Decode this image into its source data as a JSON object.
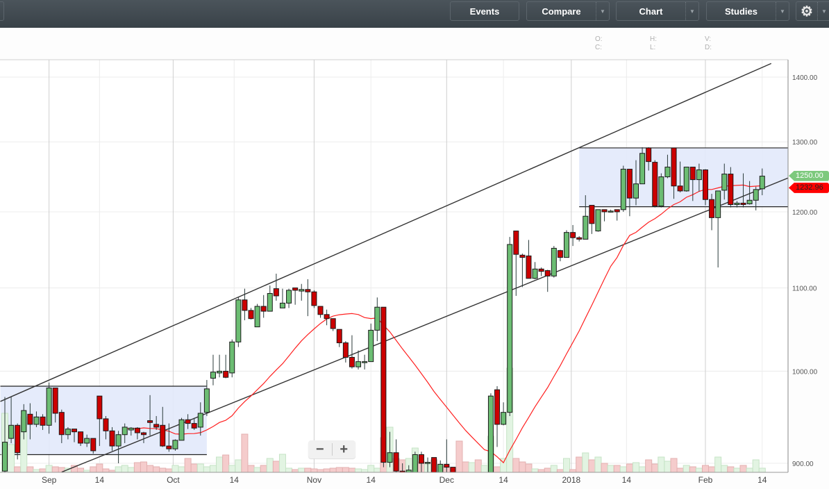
{
  "toolbar": {
    "events_label": "Events",
    "compare_label": "Compare",
    "chart_label": "Chart",
    "studies_label": "Studies",
    "settings_icon": "gear-icon",
    "dropdown_icon": "caret-down-icon"
  },
  "ohlc_readout": {
    "o": "O:",
    "c": "C:",
    "h": "H:",
    "l": "L:",
    "v": "V:",
    "d": "D:"
  },
  "zoom": {
    "minus": "−",
    "plus": "+"
  },
  "price_tags": {
    "last_price": "1250.00",
    "last_price_color": "#7dc97d",
    "ma_value": "1232.96",
    "ma_color": "#ff0000"
  },
  "chart_data": {
    "type": "candlestick",
    "y_scale": "log",
    "ylim": [
      890,
      1425
    ],
    "grid": true,
    "colors": {
      "up": "#6cbd73",
      "down": "#cc0000",
      "ma": "#ff2020",
      "volume_up": "#e2f4e2",
      "volume_down": "#f5cccc",
      "box": "#e2e9fb"
    },
    "y_ticks": [
      "1400.00",
      "1300.00",
      "1200.00",
      "1100.00",
      "1000.00",
      "900.00"
    ],
    "x_ticks": [
      {
        "label": "Sep",
        "date": "2017-09-01",
        "major": true
      },
      {
        "label": "14",
        "date": "2017-09-14",
        "major": false
      },
      {
        "label": "Oct",
        "date": "2017-10-01",
        "major": true
      },
      {
        "label": "14",
        "date": "2017-10-14",
        "major": false
      },
      {
        "label": "Nov",
        "date": "2017-11-01",
        "major": true
      },
      {
        "label": "14",
        "date": "2017-11-14",
        "major": false
      },
      {
        "label": "Dec",
        "date": "2017-12-01",
        "major": true
      },
      {
        "label": "14",
        "date": "2017-12-14",
        "major": false
      },
      {
        "label": "2018",
        "date": "2018-01-01",
        "major": true
      },
      {
        "label": "14",
        "date": "2018-01-14",
        "major": false
      },
      {
        "label": "Feb",
        "date": "2018-02-01",
        "major": true
      },
      {
        "label": "14",
        "date": "2018-02-14",
        "major": false
      }
    ],
    "dates": [
      "2017-08-23",
      "2017-08-24",
      "2017-08-25",
      "2017-08-28",
      "2017-08-29",
      "2017-08-30",
      "2017-08-31",
      "2017-09-01",
      "2017-09-05",
      "2017-09-06",
      "2017-09-07",
      "2017-09-08",
      "2017-09-11",
      "2017-09-12",
      "2017-09-13",
      "2017-09-14",
      "2017-09-15",
      "2017-09-18",
      "2017-09-19",
      "2017-09-20",
      "2017-09-21",
      "2017-09-22",
      "2017-09-25",
      "2017-09-26",
      "2017-09-27",
      "2017-09-28",
      "2017-09-29",
      "2017-10-02",
      "2017-10-03",
      "2017-10-04",
      "2017-10-05",
      "2017-10-06",
      "2017-10-09",
      "2017-10-10",
      "2017-10-11",
      "2017-10-12",
      "2017-10-13",
      "2017-10-16",
      "2017-10-17",
      "2017-10-18",
      "2017-10-19",
      "2017-10-20",
      "2017-10-23",
      "2017-10-24",
      "2017-10-25",
      "2017-10-26",
      "2017-10-27",
      "2017-10-30",
      "2017-10-31",
      "2017-11-01",
      "2017-11-02",
      "2017-11-03",
      "2017-11-06",
      "2017-11-07",
      "2017-11-08",
      "2017-11-09",
      "2017-11-10",
      "2017-11-13",
      "2017-11-14",
      "2017-11-15",
      "2017-11-16",
      "2017-11-17",
      "2017-11-20",
      "2017-11-21",
      "2017-11-22",
      "2017-11-24",
      "2017-11-27",
      "2017-11-28",
      "2017-11-29",
      "2017-11-30",
      "2017-12-01",
      "2017-12-04",
      "2017-12-05",
      "2017-12-06",
      "2017-12-07",
      "2017-12-08",
      "2017-12-11",
      "2017-12-12",
      "2017-12-13",
      "2017-12-14",
      "2017-12-15",
      "2017-12-18",
      "2017-12-19",
      "2017-12-20",
      "2017-12-21",
      "2017-12-22",
      "2017-12-26",
      "2017-12-27",
      "2017-12-28",
      "2017-12-29",
      "2018-01-02",
      "2018-01-03",
      "2018-01-04",
      "2018-01-05",
      "2018-01-08",
      "2018-01-09",
      "2018-01-10",
      "2018-01-11",
      "2018-01-12",
      "2018-01-16",
      "2018-01-17",
      "2018-01-18",
      "2018-01-19",
      "2018-01-22",
      "2018-01-23",
      "2018-01-24",
      "2018-01-25",
      "2018-01-26",
      "2018-01-29",
      "2018-01-30",
      "2018-01-31",
      "2018-02-01",
      "2018-02-02",
      "2018-02-05",
      "2018-02-06",
      "2018-02-07",
      "2018-02-08",
      "2018-02-09",
      "2018-02-12",
      "2018-02-13",
      "2018-02-14"
    ],
    "open": [
      892,
      926,
      940,
      933,
      952,
      941,
      949,
      940,
      981,
      954,
      930,
      936,
      933,
      921,
      926,
      972,
      947,
      934,
      918,
      930,
      935,
      937,
      932,
      945,
      941,
      940,
      918,
      915,
      924,
      946,
      942,
      938,
      954,
      992,
      998,
      1000,
      998,
      1034,
      1085,
      1072,
      1052,
      1077,
      1071,
      1099,
      1075,
      1081,
      1100,
      1096,
      1098,
      1095,
      1077,
      1067,
      1062,
      1049,
      1033,
      1016,
      1005,
      1010,
      1011,
      1048,
      1076,
      901,
      911,
      892,
      888,
      890,
      909,
      900,
      906,
      890,
      899,
      896,
      888,
      880,
      872,
      876,
      870,
      887,
      979,
      941,
      954,
      1174,
      1142,
      1141,
      1112,
      1124,
      1122,
      1115,
      1148,
      1139,
      1172,
      1165,
      1163,
      1209,
      1174,
      1203,
      1200,
      1203,
      1203,
      1260,
      1219,
      1239,
      1291,
      1270,
      1208,
      1249,
      1291,
      1236,
      1229,
      1263,
      1245,
      1259,
      1217,
      1192,
      1230,
      1253,
      1210,
      1212,
      1211,
      1216,
      1232
    ],
    "high": [
      971,
      971,
      942,
      963,
      964,
      955,
      952,
      987,
      981,
      957,
      938,
      936,
      933,
      930,
      926,
      972,
      950,
      938,
      934,
      942,
      938,
      938,
      933,
      973,
      950,
      960,
      942,
      925,
      948,
      952,
      948,
      965,
      990,
      1019,
      1019,
      1019,
      1037,
      1088,
      1099,
      1075,
      1080,
      1091,
      1103,
      1118,
      1099,
      1099,
      1100,
      1105,
      1111,
      1097,
      1077,
      1073,
      1062,
      1049,
      1035,
      1042,
      1024,
      1019,
      1056,
      1088,
      1076,
      933,
      925,
      900,
      898,
      912,
      912,
      906,
      906,
      903,
      925,
      896,
      889,
      884,
      880,
      882,
      884,
      975,
      983,
      965,
      1166,
      1174,
      1144,
      1162,
      1133,
      1126,
      1123,
      1154,
      1149,
      1175,
      1182,
      1167,
      1223,
      1209,
      1203,
      1203,
      1203,
      1203,
      1265,
      1260,
      1273,
      1292,
      1292,
      1273,
      1254,
      1281,
      1291,
      1271,
      1263,
      1263,
      1268,
      1260,
      1225,
      1229,
      1268,
      1263,
      1215,
      1254,
      1243,
      1235,
      1261
    ],
    "low": [
      888,
      921,
      904,
      925,
      925,
      938,
      935,
      931,
      943,
      921,
      925,
      922,
      918,
      917,
      910,
      918,
      925,
      913,
      900,
      921,
      929,
      925,
      921,
      929,
      935,
      917,
      912,
      913,
      924,
      936,
      935,
      929,
      950,
      984,
      993,
      992,
      993,
      1028,
      1060,
      1061,
      1052,
      1063,
      1071,
      1084,
      1075,
      1075,
      1079,
      1084,
      1065,
      1075,
      1063,
      1054,
      1047,
      1028,
      1010,
      1003,
      1002,
      1002,
      1011,
      1035,
      896,
      896,
      887,
      880,
      882,
      887,
      887,
      887,
      887,
      887,
      887,
      887,
      875,
      868,
      865,
      866,
      868,
      880,
      917,
      940,
      950,
      1090,
      1101,
      1112,
      1111,
      1115,
      1095,
      1113,
      1134,
      1139,
      1154,
      1160,
      1163,
      1170,
      1173,
      1187,
      1199,
      1188,
      1200,
      1194,
      1209,
      1239,
      1258,
      1206,
      1206,
      1247,
      1218,
      1227,
      1228,
      1215,
      1228,
      1209,
      1175,
      1126,
      1217,
      1206,
      1206,
      1206,
      1210,
      1202,
      1223
    ],
    "close": [
      922,
      940,
      911,
      956,
      941,
      949,
      940,
      981,
      953,
      930,
      936,
      933,
      921,
      926,
      913,
      947,
      934,
      918,
      930,
      938,
      937,
      932,
      930,
      943,
      938,
      918,
      915,
      924,
      946,
      942,
      937,
      953,
      980,
      999,
      1000,
      993,
      1034,
      1085,
      1072,
      1062,
      1077,
      1071,
      1093,
      1090,
      1081,
      1097,
      1097,
      1098,
      1095,
      1078,
      1067,
      1062,
      1050,
      1033,
      1016,
      1005,
      1011,
      1011,
      1048,
      1076,
      901,
      911,
      892,
      888,
      893,
      909,
      900,
      901,
      890,
      899,
      896,
      890,
      880,
      872,
      876,
      870,
      878,
      972,
      941,
      954,
      1156,
      1143,
      1139,
      1112,
      1124,
      1121,
      1115,
      1151,
      1139,
      1172,
      1165,
      1163,
      1194,
      1184,
      1203,
      1200,
      1201,
      1200,
      1260,
      1219,
      1239,
      1283,
      1271,
      1208,
      1249,
      1263,
      1236,
      1229,
      1263,
      1245,
      1259,
      1217,
      1192,
      1229,
      1253,
      1210,
      1212,
      1210,
      1216,
      1231,
      1250
    ],
    "volume": [
      85,
      40,
      8,
      80,
      8,
      4,
      5,
      10,
      8,
      7,
      6,
      10,
      6,
      3,
      8,
      12,
      5,
      3,
      8,
      10,
      7,
      14,
      15,
      10,
      8,
      6,
      5,
      10,
      8,
      20,
      12,
      12,
      8,
      10,
      22,
      25,
      10,
      18,
      55,
      10,
      7,
      10,
      20,
      16,
      26,
      6,
      4,
      6,
      6,
      5,
      4,
      5,
      6,
      7,
      7,
      6,
      5,
      4,
      10,
      6,
      50,
      65,
      20,
      18,
      20,
      35,
      15,
      12,
      18,
      10,
      8,
      5,
      45,
      15,
      14,
      18,
      10,
      52,
      8,
      20,
      150,
      20,
      15,
      12,
      5,
      4,
      6,
      10,
      4,
      20,
      4,
      22,
      28,
      18,
      22,
      13,
      10,
      10,
      8,
      12,
      14,
      8,
      18,
      12,
      22,
      16,
      20,
      6,
      10,
      8,
      6,
      10,
      8,
      22,
      10,
      8,
      6,
      10,
      6,
      18,
      6
    ],
    "moving_average": {
      "type": "SMA",
      "period": 20
    },
    "trendlines": [
      {
        "from": {
          "date": "2017-08-22",
          "price": 966
        },
        "to": {
          "date": "2018-02-16",
          "price": 1422
        }
      },
      {
        "from": {
          "date": "2017-09-06",
          "price": 891
        },
        "to": {
          "date": "2018-02-20",
          "price": 1248
        }
      }
    ],
    "boxes": [
      {
        "from_date": "2017-08-22",
        "to_date": "2017-10-09",
        "low": 909,
        "high": 983
      },
      {
        "from_date": "2018-01-03",
        "to_date": "2018-02-20",
        "low": 1207,
        "high": 1291
      }
    ]
  }
}
